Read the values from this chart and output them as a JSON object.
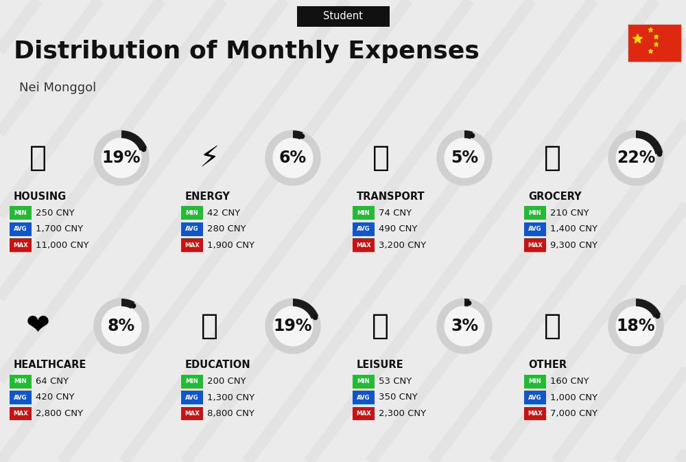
{
  "title": "Distribution of Monthly Expenses",
  "subtitle": "Nei Monggol",
  "header_label": "Student",
  "bg_color": "#ebebeb",
  "stripe_color": "#dedede",
  "categories": [
    {
      "name": "HOUSING",
      "pct": 19,
      "min": "250 CNY",
      "avg": "1,700 CNY",
      "max": "11,000 CNY",
      "icon": "🏗️",
      "row": 0,
      "col": 0
    },
    {
      "name": "ENERGY",
      "pct": 6,
      "min": "42 CNY",
      "avg": "280 CNY",
      "max": "1,900 CNY",
      "icon": "⚡️",
      "row": 0,
      "col": 1
    },
    {
      "name": "TRANSPORT",
      "pct": 5,
      "min": "74 CNY",
      "avg": "490 CNY",
      "max": "3,200 CNY",
      "icon": "🚌",
      "row": 0,
      "col": 2
    },
    {
      "name": "GROCERY",
      "pct": 22,
      "min": "210 CNY",
      "avg": "1,400 CNY",
      "max": "9,300 CNY",
      "icon": "🛒",
      "row": 0,
      "col": 3
    },
    {
      "name": "HEALTHCARE",
      "pct": 8,
      "min": "64 CNY",
      "avg": "420 CNY",
      "max": "2,800 CNY",
      "icon": "❤️",
      "row": 1,
      "col": 0
    },
    {
      "name": "EDUCATION",
      "pct": 19,
      "min": "200 CNY",
      "avg": "1,300 CNY",
      "max": "8,800 CNY",
      "icon": "🎓",
      "row": 1,
      "col": 1
    },
    {
      "name": "LEISURE",
      "pct": 3,
      "min": "53 CNY",
      "avg": "350 CNY",
      "max": "2,300 CNY",
      "icon": "🛍️",
      "row": 1,
      "col": 2
    },
    {
      "name": "OTHER",
      "pct": 18,
      "min": "160 CNY",
      "avg": "1,000 CNY",
      "max": "7,000 CNY",
      "icon": "💰",
      "row": 1,
      "col": 3
    }
  ],
  "min_color": "#22bb33",
  "avg_color": "#1155cc",
  "max_color": "#cc1111",
  "donut_bg": "#d0d0d0",
  "donut_arc": "#1a1a1a",
  "donut_inner_color": "#f5f5f5",
  "pct_fontsize": 17,
  "cat_fontsize": 10.5,
  "val_fontsize": 9.5,
  "title_fontsize": 26,
  "subtitle_fontsize": 13,
  "header_fontsize": 10.5,
  "fig_width": 10.0,
  "fig_height": 6.73,
  "dpi": 100
}
